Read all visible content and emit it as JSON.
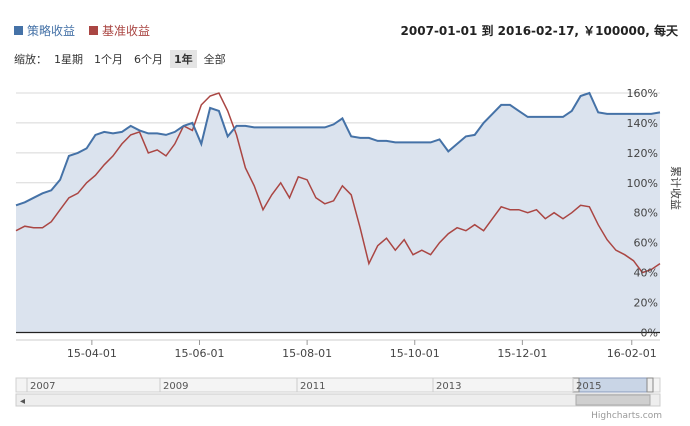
{
  "legend": [
    {
      "name": "策略收益",
      "color": "#4572a7"
    },
    {
      "name": "基准收益",
      "color": "#aa4643"
    }
  ],
  "range_text": "2007-01-01 到 2016-02-17, ￥100000, 每天",
  "zoom": {
    "label": "缩放：",
    "buttons": [
      "1星期",
      "1个月",
      "6个月",
      "1年",
      "全部"
    ],
    "active": "1年"
  },
  "credit": "Highcharts.com",
  "navigator": {
    "labels": [
      "2007",
      "2009",
      "2011",
      "2013",
      "2015"
    ]
  },
  "chart_data": {
    "type": "area",
    "x_ticks": [
      "15-04-01",
      "15-06-01",
      "15-08-01",
      "15-10-01",
      "15-12-01",
      "16-02-01"
    ],
    "y_ticks": [
      "0%",
      "20%",
      "40%",
      "60%",
      "80%",
      "100%",
      "120%",
      "140%",
      "160%"
    ],
    "ylabel": "累计收益",
    "ylim": [
      -5,
      170
    ],
    "x_range": [
      "2015-02-17",
      "2016-02-17"
    ],
    "series": [
      {
        "name": "策略收益",
        "color": "#4572a7",
        "fill": "#dbe3ee",
        "points": [
          [
            "2015-02-17",
            85
          ],
          [
            "2015-02-22",
            87
          ],
          [
            "2015-02-27",
            90
          ],
          [
            "2015-03-04",
            93
          ],
          [
            "2015-03-09",
            95
          ],
          [
            "2015-03-14",
            102
          ],
          [
            "2015-03-19",
            118
          ],
          [
            "2015-03-24",
            120
          ],
          [
            "2015-03-29",
            123
          ],
          [
            "2015-04-03",
            132
          ],
          [
            "2015-04-08",
            134
          ],
          [
            "2015-04-13",
            133
          ],
          [
            "2015-04-18",
            134
          ],
          [
            "2015-04-23",
            138
          ],
          [
            "2015-04-28",
            135
          ],
          [
            "2015-05-03",
            133
          ],
          [
            "2015-05-08",
            133
          ],
          [
            "2015-05-13",
            132
          ],
          [
            "2015-05-18",
            134
          ],
          [
            "2015-05-23",
            138
          ],
          [
            "2015-05-28",
            140
          ],
          [
            "2015-06-02",
            126
          ],
          [
            "2015-06-07",
            150
          ],
          [
            "2015-06-12",
            148
          ],
          [
            "2015-06-17",
            131
          ],
          [
            "2015-06-22",
            138
          ],
          [
            "2015-06-27",
            138
          ],
          [
            "2015-07-02",
            137
          ],
          [
            "2015-07-07",
            137
          ],
          [
            "2015-07-12",
            137
          ],
          [
            "2015-07-17",
            137
          ],
          [
            "2015-07-22",
            137
          ],
          [
            "2015-07-27",
            137
          ],
          [
            "2015-08-01",
            137
          ],
          [
            "2015-08-06",
            137
          ],
          [
            "2015-08-11",
            137
          ],
          [
            "2015-08-16",
            139
          ],
          [
            "2015-08-21",
            143
          ],
          [
            "2015-08-26",
            131
          ],
          [
            "2015-08-31",
            130
          ],
          [
            "2015-09-05",
            130
          ],
          [
            "2015-09-10",
            128
          ],
          [
            "2015-09-15",
            128
          ],
          [
            "2015-09-20",
            127
          ],
          [
            "2015-09-25",
            127
          ],
          [
            "2015-09-30",
            127
          ],
          [
            "2015-10-05",
            127
          ],
          [
            "2015-10-10",
            127
          ],
          [
            "2015-10-15",
            129
          ],
          [
            "2015-10-20",
            121
          ],
          [
            "2015-10-25",
            126
          ],
          [
            "2015-10-30",
            131
          ],
          [
            "2015-11-04",
            132
          ],
          [
            "2015-11-09",
            140
          ],
          [
            "2015-11-14",
            146
          ],
          [
            "2015-11-19",
            152
          ],
          [
            "2015-11-24",
            152
          ],
          [
            "2015-11-29",
            148
          ],
          [
            "2015-12-04",
            144
          ],
          [
            "2015-12-09",
            144
          ],
          [
            "2015-12-14",
            144
          ],
          [
            "2015-12-19",
            144
          ],
          [
            "2015-12-24",
            144
          ],
          [
            "2015-12-29",
            148
          ],
          [
            "2016-01-03",
            158
          ],
          [
            "2016-01-08",
            160
          ],
          [
            "2016-01-13",
            147
          ],
          [
            "2016-01-18",
            146
          ],
          [
            "2016-01-23",
            146
          ],
          [
            "2016-01-28",
            146
          ],
          [
            "2016-02-02",
            146
          ],
          [
            "2016-02-07",
            146
          ],
          [
            "2016-02-12",
            146
          ],
          [
            "2016-02-17",
            147
          ]
        ]
      },
      {
        "name": "基准收益",
        "color": "#aa4643",
        "points": [
          [
            "2015-02-17",
            68
          ],
          [
            "2015-02-22",
            71
          ],
          [
            "2015-02-27",
            70
          ],
          [
            "2015-03-04",
            70
          ],
          [
            "2015-03-09",
            74
          ],
          [
            "2015-03-14",
            82
          ],
          [
            "2015-03-19",
            90
          ],
          [
            "2015-03-24",
            93
          ],
          [
            "2015-03-29",
            100
          ],
          [
            "2015-04-03",
            105
          ],
          [
            "2015-04-08",
            112
          ],
          [
            "2015-04-13",
            118
          ],
          [
            "2015-04-18",
            126
          ],
          [
            "2015-04-23",
            132
          ],
          [
            "2015-04-28",
            134
          ],
          [
            "2015-05-03",
            120
          ],
          [
            "2015-05-08",
            122
          ],
          [
            "2015-05-13",
            118
          ],
          [
            "2015-05-18",
            126
          ],
          [
            "2015-05-23",
            138
          ],
          [
            "2015-05-28",
            135
          ],
          [
            "2015-06-02",
            152
          ],
          [
            "2015-06-07",
            158
          ],
          [
            "2015-06-12",
            160
          ],
          [
            "2015-06-17",
            148
          ],
          [
            "2015-06-22",
            132
          ],
          [
            "2015-06-27",
            110
          ],
          [
            "2015-07-02",
            98
          ],
          [
            "2015-07-07",
            82
          ],
          [
            "2015-07-12",
            92
          ],
          [
            "2015-07-17",
            100
          ],
          [
            "2015-07-22",
            90
          ],
          [
            "2015-07-27",
            104
          ],
          [
            "2015-08-01",
            102
          ],
          [
            "2015-08-06",
            90
          ],
          [
            "2015-08-11",
            86
          ],
          [
            "2015-08-16",
            88
          ],
          [
            "2015-08-21",
            98
          ],
          [
            "2015-08-26",
            92
          ],
          [
            "2015-08-31",
            70
          ],
          [
            "2015-09-05",
            46
          ],
          [
            "2015-09-10",
            58
          ],
          [
            "2015-09-15",
            63
          ],
          [
            "2015-09-20",
            55
          ],
          [
            "2015-09-25",
            62
          ],
          [
            "2015-09-30",
            52
          ],
          [
            "2015-10-05",
            55
          ],
          [
            "2015-10-10",
            52
          ],
          [
            "2015-10-15",
            60
          ],
          [
            "2015-10-20",
            66
          ],
          [
            "2015-10-25",
            70
          ],
          [
            "2015-10-30",
            68
          ],
          [
            "2015-11-04",
            72
          ],
          [
            "2015-11-09",
            68
          ],
          [
            "2015-11-14",
            76
          ],
          [
            "2015-11-19",
            84
          ],
          [
            "2015-11-24",
            82
          ],
          [
            "2015-11-29",
            82
          ],
          [
            "2015-12-04",
            80
          ],
          [
            "2015-12-09",
            82
          ],
          [
            "2015-12-14",
            76
          ],
          [
            "2015-12-19",
            80
          ],
          [
            "2015-12-24",
            76
          ],
          [
            "2015-12-29",
            80
          ],
          [
            "2016-01-03",
            85
          ],
          [
            "2016-01-08",
            84
          ],
          [
            "2016-01-13",
            72
          ],
          [
            "2016-01-18",
            62
          ],
          [
            "2016-01-23",
            55
          ],
          [
            "2016-01-28",
            52
          ],
          [
            "2016-02-02",
            48
          ],
          [
            "2016-02-07",
            40
          ],
          [
            "2016-02-12",
            42
          ],
          [
            "2016-02-17",
            46
          ]
        ]
      }
    ]
  }
}
